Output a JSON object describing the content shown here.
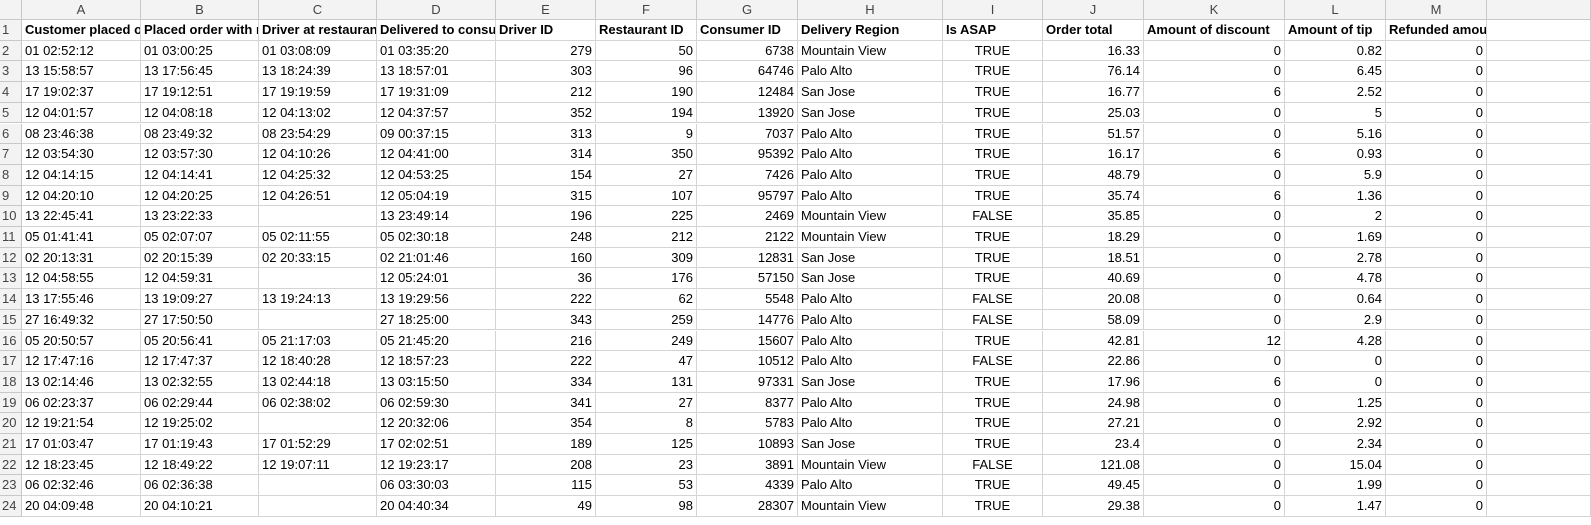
{
  "sheet": {
    "columns": [
      "A",
      "B",
      "C",
      "D",
      "E",
      "F",
      "G",
      "H",
      "I",
      "J",
      "K",
      "L",
      "M"
    ],
    "row_numbers": [
      1,
      2,
      3,
      4,
      5,
      6,
      7,
      8,
      9,
      10,
      11,
      12,
      13,
      14,
      15,
      16,
      17,
      18,
      19,
      20,
      21,
      22,
      23,
      24
    ],
    "header": [
      "Customer placed order datetime",
      "Placed order with restaurant datetime",
      "Driver at restaurant datetime",
      "Delivered to consumer datetime",
      "Driver ID",
      "Restaurant ID",
      "Consumer ID",
      "Delivery Region",
      "Is ASAP",
      "Order total",
      "Amount of discount",
      "Amount of tip",
      "Refunded amount"
    ],
    "rows": [
      [
        "01 02:52:12",
        "01 03:00:25",
        "01 03:08:09",
        "01 03:35:20",
        279,
        50,
        6738,
        "Mountain View",
        "TRUE",
        16.33,
        0,
        0.82,
        0
      ],
      [
        "13 15:58:57",
        "13 17:56:45",
        "13 18:24:39",
        "13 18:57:01",
        303,
        96,
        64746,
        "Palo Alto",
        "TRUE",
        76.14,
        0,
        6.45,
        0
      ],
      [
        "17 19:02:37",
        "17 19:12:51",
        "17 19:19:59",
        "17 19:31:09",
        212,
        190,
        12484,
        "San Jose",
        "TRUE",
        16.77,
        6,
        2.52,
        0
      ],
      [
        "12 04:01:57",
        "12 04:08:18",
        "12 04:13:02",
        "12 04:37:57",
        352,
        194,
        13920,
        "San Jose",
        "TRUE",
        25.03,
        0,
        5,
        0
      ],
      [
        "08 23:46:38",
        "08 23:49:32",
        "08 23:54:29",
        "09 00:37:15",
        313,
        9,
        7037,
        "Palo Alto",
        "TRUE",
        51.57,
        0,
        5.16,
        0
      ],
      [
        "12 03:54:30",
        "12 03:57:30",
        "12 04:10:26",
        "12 04:41:00",
        314,
        350,
        95392,
        "Palo Alto",
        "TRUE",
        16.17,
        6,
        0.93,
        0
      ],
      [
        "12 04:14:15",
        "12 04:14:41",
        "12 04:25:32",
        "12 04:53:25",
        154,
        27,
        7426,
        "Palo Alto",
        "TRUE",
        48.79,
        0,
        5.9,
        0
      ],
      [
        "12 04:20:10",
        "12 04:20:25",
        "12 04:26:51",
        "12 05:04:19",
        315,
        107,
        95797,
        "Palo Alto",
        "TRUE",
        35.74,
        6,
        1.36,
        0
      ],
      [
        "13 22:45:41",
        "13 23:22:33",
        null,
        "13 23:49:14",
        196,
        225,
        2469,
        "Mountain View",
        "FALSE",
        35.85,
        0,
        2,
        0
      ],
      [
        "05 01:41:41",
        "05 02:07:07",
        "05 02:11:55",
        "05 02:30:18",
        248,
        212,
        2122,
        "Mountain View",
        "TRUE",
        18.29,
        0,
        1.69,
        0
      ],
      [
        "02 20:13:31",
        "02 20:15:39",
        "02 20:33:15",
        "02 21:01:46",
        160,
        309,
        12831,
        "San Jose",
        "TRUE",
        18.51,
        0,
        2.78,
        0
      ],
      [
        "12 04:58:55",
        "12 04:59:31",
        null,
        "12 05:24:01",
        36,
        176,
        57150,
        "San Jose",
        "TRUE",
        40.69,
        0,
        4.78,
        0
      ],
      [
        "13 17:55:46",
        "13 19:09:27",
        "13 19:24:13",
        "13 19:29:56",
        222,
        62,
        5548,
        "Palo Alto",
        "FALSE",
        20.08,
        0,
        0.64,
        0
      ],
      [
        "27 16:49:32",
        "27 17:50:50",
        null,
        "27 18:25:00",
        343,
        259,
        14776,
        "Palo Alto",
        "FALSE",
        58.09,
        0,
        2.9,
        0
      ],
      [
        "05 20:50:57",
        "05 20:56:41",
        "05 21:17:03",
        "05 21:45:20",
        216,
        249,
        15607,
        "Palo Alto",
        "TRUE",
        42.81,
        12,
        4.28,
        0
      ],
      [
        "12 17:47:16",
        "12 17:47:37",
        "12 18:40:28",
        "12 18:57:23",
        222,
        47,
        10512,
        "Palo Alto",
        "FALSE",
        22.86,
        0,
        0,
        0
      ],
      [
        "13 02:14:46",
        "13 02:32:55",
        "13 02:44:18",
        "13 03:15:50",
        334,
        131,
        97331,
        "San Jose",
        "TRUE",
        17.96,
        6,
        0,
        0
      ],
      [
        "06 02:23:37",
        "06 02:29:44",
        "06 02:38:02",
        "06 02:59:30",
        341,
        27,
        8377,
        "Palo Alto",
        "TRUE",
        24.98,
        0,
        1.25,
        0
      ],
      [
        "12 19:21:54",
        "12 19:25:02",
        null,
        "12 20:32:06",
        354,
        8,
        5783,
        "Palo Alto",
        "TRUE",
        27.21,
        0,
        2.92,
        0
      ],
      [
        "17 01:03:47",
        "17 01:19:43",
        "17 01:52:29",
        "17 02:02:51",
        189,
        125,
        10893,
        "San Jose",
        "TRUE",
        23.4,
        0,
        2.34,
        0
      ],
      [
        "12 18:23:45",
        "12 18:49:22",
        "12 19:07:11",
        "12 19:23:17",
        208,
        23,
        3891,
        "Mountain View",
        "FALSE",
        121.08,
        0,
        15.04,
        0
      ],
      [
        "06 02:32:46",
        "06 02:36:38",
        null,
        "06 03:30:03",
        115,
        53,
        4339,
        "Palo Alto",
        "TRUE",
        49.45,
        0,
        1.99,
        0
      ],
      [
        "20 04:09:48",
        "20 04:10:21",
        null,
        "20 04:40:34",
        49,
        98,
        28307,
        "Mountain View",
        "TRUE",
        29.38,
        0,
        1.47,
        0
      ]
    ]
  }
}
